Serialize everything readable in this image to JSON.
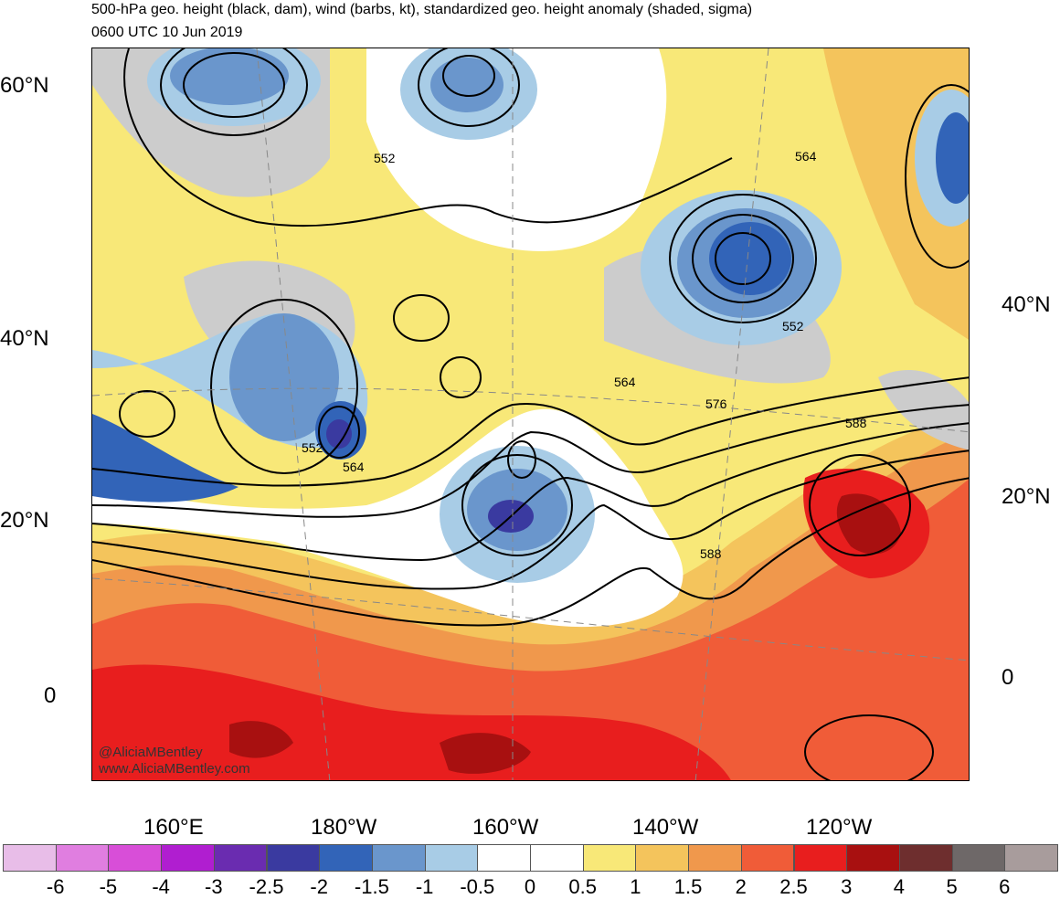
{
  "title_line1": "500-hPa geo. height (black, dam), wind (barbs, kt), standardized geo. height anomaly (shaded, sigma)",
  "title_line2": "0600 UTC 10 Jun 2019",
  "lat_labels_left": [
    "60°N",
    "40°N",
    "20°N",
    "0"
  ],
  "lat_labels_right": [
    "40°N",
    "20°N",
    "0"
  ],
  "lon_labels": [
    "160°E",
    "180°W",
    "160°W",
    "140°W",
    "120°W"
  ],
  "contour_labels": [
    "552",
    "564",
    "552",
    "564",
    "576",
    "588",
    "552",
    "564",
    "588"
  ],
  "credit_line1": "@AliciaMBentley",
  "credit_line2": "www.AliciaMBentley.com",
  "colorbar": {
    "labels": [
      "-6",
      "-5",
      "-4",
      "-3",
      "-2.5",
      "-2",
      "-1.5",
      "-1",
      "-0.5",
      "0",
      "0.5",
      "1",
      "1.5",
      "2",
      "2.5",
      "3",
      "4",
      "5",
      "6"
    ],
    "colors": [
      "#e8bde8",
      "#e07ee0",
      "#d84ed8",
      "#b01ed0",
      "#6a2cb0",
      "#3a3aa0",
      "#3264b8",
      "#6a96cc",
      "#a8cce6",
      "#ffffff",
      "#ffffff",
      "#f8e878",
      "#f4c45c",
      "#f0984c",
      "#f05c38",
      "#e81e1e",
      "#a81010",
      "#6e2e2e",
      "#6e6868",
      "#a89c9c"
    ]
  }
}
